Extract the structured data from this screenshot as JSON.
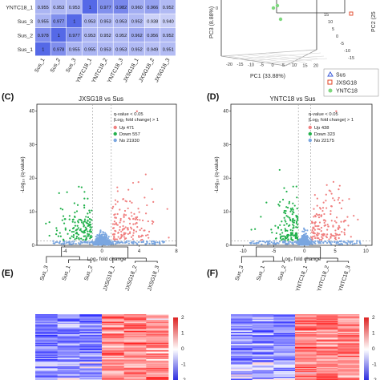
{
  "colors": {
    "up": "#f08080",
    "down": "#22b14c",
    "no": "#7aa6e0",
    "blue": "#3333dd",
    "red": "#dd2222"
  },
  "panels": {
    "c": {
      "label": "(C)",
      "title": "JXSG18 vs Sus"
    },
    "d": {
      "label": "(D)",
      "title": "YNTC18 vs Sus"
    },
    "e": {
      "label": "(E)"
    },
    "f": {
      "label": "(F)"
    }
  },
  "chart_data": [
    {
      "id": "correlation-heatmap",
      "type": "heatmap",
      "rows": [
        "YNTC18_1",
        "Sus_3",
        "Sus_2",
        "Sus_1"
      ],
      "columns": [
        "Sus_1",
        "Sus_2",
        "Sus_3",
        "YNTC18_1",
        "YNTC18_2",
        "YNTC18_3",
        "JXSG18_1",
        "JXSG18_2",
        "JXSG18_3"
      ],
      "values": [
        [
          0.955,
          0.953,
          0.953,
          1,
          0.977,
          0.982,
          0.96,
          0.966,
          0.952
        ],
        [
          0.955,
          0.977,
          1,
          0.953,
          0.953,
          0.953,
          0.952,
          0.938,
          0.94
        ],
        [
          0.978,
          1,
          0.977,
          0.953,
          0.952,
          0.952,
          0.962,
          0.956,
          0.952
        ],
        [
          1,
          0.978,
          0.955,
          0.955,
          0.953,
          0.953,
          0.952,
          0.949,
          0.951
        ]
      ]
    },
    {
      "id": "pca-3d",
      "type": "scatter",
      "xlabel": "PC1 (33.88%)",
      "ylabel": "PC3 (8.88%)",
      "zlabel": "PC2 (25",
      "x_ticks": [
        "-20",
        "-15",
        "-10",
        "-5",
        "0",
        "5",
        "10",
        "15",
        "20"
      ],
      "y_ticks": [
        "15",
        "10",
        "5",
        "0",
        "-5",
        "-10",
        "-15"
      ],
      "legend": [
        "Sus",
        "JXSG18",
        "YNTC18"
      ],
      "legend_position": "bottom-right"
    },
    {
      "id": "volcano-jxsg18",
      "type": "scatter",
      "title": "JXSG18 vs Sus",
      "xlabel": "Log₂ fold change",
      "ylabel": "-Log₁₀ (q-value)",
      "xlim": [
        -7,
        8
      ],
      "ylim": [
        0,
        42
      ],
      "x_ticks": [
        -4,
        0,
        4,
        8
      ],
      "y_ticks": [
        0,
        10,
        20,
        30,
        40
      ],
      "threshold_lines": [
        "q-value < 0.05",
        "|Log₂ fold change| > 1"
      ],
      "series": [
        {
          "name": "Up 471",
          "count": 471
        },
        {
          "name": "Down 557",
          "count": 557
        },
        {
          "name": "No 21930",
          "count": 21930
        }
      ]
    },
    {
      "id": "volcano-yntc18",
      "type": "scatter",
      "title": "YNTC18 vs Sus",
      "xlabel": "Log₂ fold change",
      "ylabel": "-Log₁₀ (q-value)",
      "xlim": [
        -12,
        11
      ],
      "ylim": [
        0,
        42
      ],
      "x_ticks": [
        -10,
        -5,
        0,
        5,
        10
      ],
      "y_ticks": [
        0,
        10,
        20,
        30,
        40
      ],
      "threshold_lines": [
        "q-value < 0.05",
        "|Log₂ fold change| > 1"
      ],
      "series": [
        {
          "name": "Up 438",
          "count": 438
        },
        {
          "name": "Down 323",
          "count": 323
        },
        {
          "name": "No 22175",
          "count": 22175
        }
      ]
    },
    {
      "id": "heatmap-jxsg18",
      "type": "heatmap",
      "columns": [
        "Sus_3",
        "Sus_1",
        "Sus_2",
        "JXSG18_1",
        "JXSG18_2",
        "JXSG18_3"
      ],
      "color_scale": [
        -2,
        2
      ],
      "scale_ticks": [
        "2",
        "1",
        "0",
        "-1",
        "-2"
      ]
    },
    {
      "id": "heatmap-yntc18",
      "type": "heatmap",
      "columns": [
        "Sus_3",
        "Sus_1",
        "Sus_2",
        "YNTC18_1",
        "YNTC18_2",
        "YNTC18_3"
      ],
      "color_scale": [
        -2,
        2
      ],
      "scale_ticks": [
        "2",
        "1",
        "0",
        "-1",
        "-2"
      ]
    }
  ]
}
